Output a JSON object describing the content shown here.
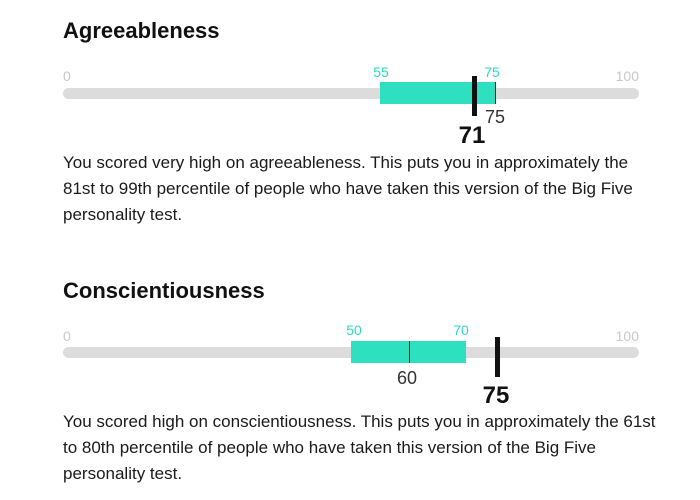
{
  "traits": [
    {
      "title": "Agreeableness",
      "scale_min": "0",
      "scale_max": "100",
      "range_low": "55",
      "range_high": "75",
      "average": "75",
      "score": "71",
      "description": "You scored very high on agreeableness. This puts you in approximately the 81st to 99th percentile of people who have taken this version of the Big Five personality test."
    },
    {
      "title": "Conscientiousness",
      "scale_min": "0",
      "scale_max": "100",
      "range_low": "50",
      "range_high": "70",
      "average": "60",
      "score": "75",
      "description": "You scored high on conscientiousness. This puts you in approximately the 61st to 80th percentile of people who have taken this version of the Big Five personality test."
    }
  ],
  "colors": {
    "range_fill": "#2ee0c0",
    "range_label": "#2ed8bf",
    "track": "#dcdcdc",
    "marker": "#111111"
  }
}
